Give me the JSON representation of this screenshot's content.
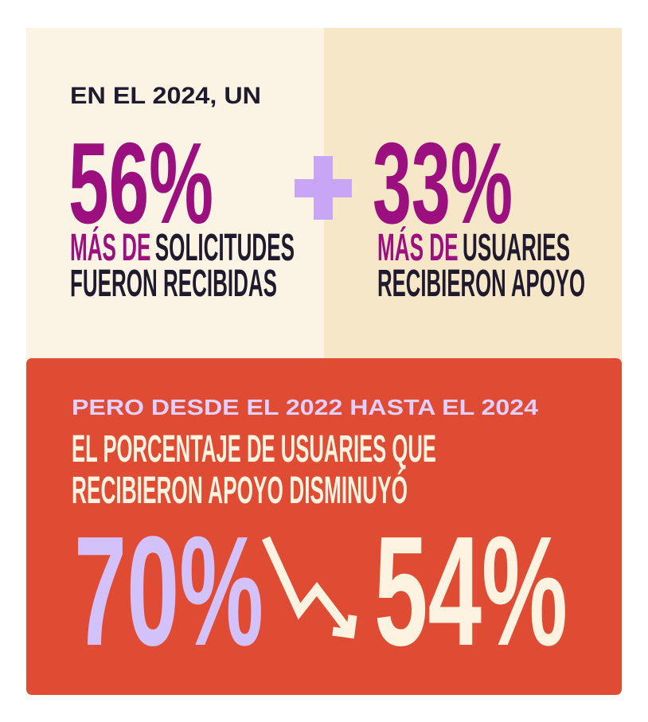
{
  "top": {
    "intro": "EN EL 2024, UN",
    "stats": [
      {
        "value": "56%",
        "highlight": "MÁS DE",
        "lines": [
          "SOLICITUDES",
          "FUERON RECIBIDAS"
        ]
      },
      {
        "value": "33%",
        "highlight": "MÁS DE",
        "lines": [
          "USUARIES",
          "RECIBIERON APOYO"
        ]
      }
    ]
  },
  "bottom": {
    "kicker": "PERO DESDE EL 2022 HASTA EL 2024",
    "headline": [
      "EL PORCENTAJE DE USUARIES QUE",
      "RECIBIERON APOYO DISMINUYÓ"
    ],
    "from": "70%",
    "to": "54%"
  }
}
